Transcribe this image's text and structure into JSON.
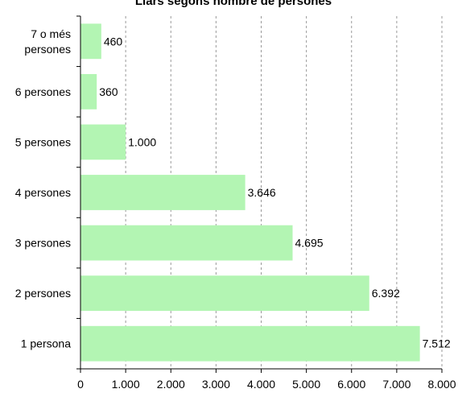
{
  "chart_data": {
    "type": "bar",
    "orientation": "horizontal",
    "title": "Llars segons nombre de persones",
    "categories": [
      [
        "7 o més",
        "persones"
      ],
      [
        "6 persones"
      ],
      [
        "5 persones"
      ],
      [
        "4 persones"
      ],
      [
        "3 persones"
      ],
      [
        "2 persones"
      ],
      [
        "1 persona"
      ]
    ],
    "values": [
      460,
      360,
      1000,
      3646,
      4695,
      6392,
      7512
    ],
    "data_labels": [
      "460",
      "360",
      "1.000",
      "3.646",
      "4.695",
      "6.392",
      "7.512"
    ],
    "xlim": [
      0,
      8000
    ],
    "xticks": [
      0,
      1000,
      2000,
      3000,
      4000,
      5000,
      6000,
      7000,
      8000
    ],
    "xtick_labels": [
      "0",
      "1.000",
      "2.000",
      "3.000",
      "4.000",
      "5.000",
      "6.000",
      "7.000",
      "8.000"
    ],
    "grid": "vertical dashed",
    "legend": "none",
    "bar_color": "#b3f5b3",
    "grid_color": "#999999"
  }
}
